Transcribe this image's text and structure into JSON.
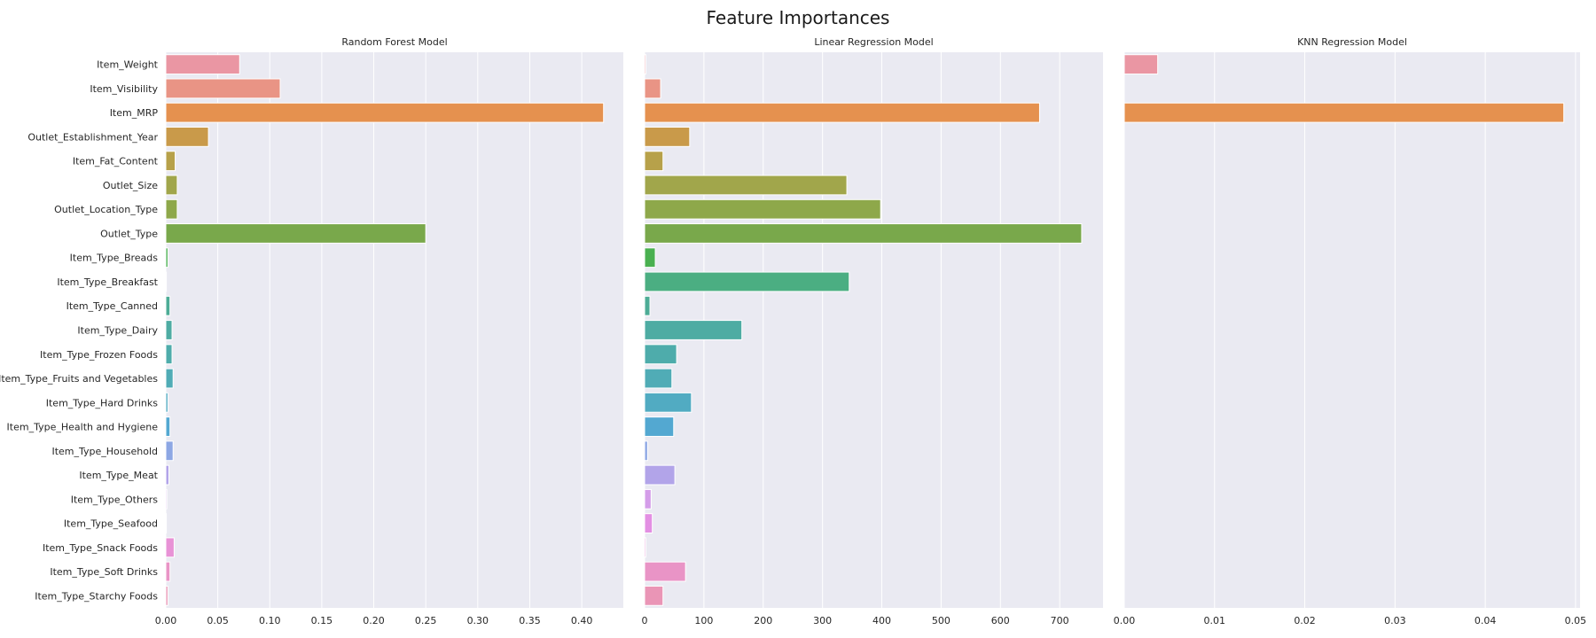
{
  "figure_title": "Feature Importances",
  "chart_data": [
    {
      "type": "bar",
      "orientation": "horizontal",
      "title": "Random Forest Model",
      "xlim": [
        0,
        0.44
      ],
      "xticks": [
        0,
        0.05,
        0.1,
        0.15,
        0.2,
        0.25,
        0.3,
        0.35,
        0.4
      ],
      "xtick_labels": [
        "0.00",
        "0.05",
        "0.10",
        "0.15",
        "0.20",
        "0.25",
        "0.30",
        "0.35",
        "0.40"
      ],
      "show_category_labels": true,
      "grid": true,
      "categories": [
        "Item_Weight",
        "Item_Visibility",
        "Item_MRP",
        "Outlet_Establishment_Year",
        "Item_Fat_Content",
        "Outlet_Size",
        "Outlet_Location_Type",
        "Outlet_Type",
        "Item_Type_Breads",
        "Item_Type_Breakfast",
        "Item_Type_Canned",
        "Item_Type_Dairy",
        "Item_Type_Frozen Foods",
        "Item_Type_Fruits and Vegetables",
        "Item_Type_Hard Drinks",
        "Item_Type_Health and Hygiene",
        "Item_Type_Household",
        "Item_Type_Meat",
        "Item_Type_Others",
        "Item_Type_Seafood",
        "Item_Type_Snack Foods",
        "Item_Type_Soft Drinks",
        "Item_Type_Starchy Foods"
      ],
      "values": [
        0.071,
        0.11,
        0.421,
        0.041,
        0.009,
        0.011,
        0.011,
        0.25,
        0.002,
        0.0005,
        0.004,
        0.006,
        0.006,
        0.007,
        0.002,
        0.004,
        0.007,
        0.003,
        0.001,
        0.0005,
        0.008,
        0.004,
        0.002
      ]
    },
    {
      "type": "bar",
      "orientation": "horizontal",
      "title": "Linear Regression Model",
      "xlim": [
        0,
        773
      ],
      "xticks": [
        0,
        100,
        200,
        300,
        400,
        500,
        600,
        700
      ],
      "xtick_labels": [
        "0",
        "100",
        "200",
        "300",
        "400",
        "500",
        "600",
        "700"
      ],
      "show_category_labels": false,
      "grid": true,
      "categories": [
        "Item_Weight",
        "Item_Visibility",
        "Item_MRP",
        "Outlet_Establishment_Year",
        "Item_Fat_Content",
        "Outlet_Size",
        "Outlet_Location_Type",
        "Outlet_Type",
        "Item_Type_Breads",
        "Item_Type_Breakfast",
        "Item_Type_Canned",
        "Item_Type_Dairy",
        "Item_Type_Frozen Foods",
        "Item_Type_Fruits and Vegetables",
        "Item_Type_Hard Drinks",
        "Item_Type_Health and Hygiene",
        "Item_Type_Household",
        "Item_Type_Meat",
        "Item_Type_Others",
        "Item_Type_Seafood",
        "Item_Type_Snack Foods",
        "Item_Type_Soft Drinks",
        "Item_Type_Starchy Foods"
      ],
      "values": [
        2,
        27,
        666,
        76,
        31,
        341,
        398,
        737,
        18,
        345,
        9,
        164,
        54,
        46,
        79,
        49,
        5,
        51,
        11,
        13,
        2,
        69,
        31
      ]
    },
    {
      "type": "bar",
      "orientation": "horizontal",
      "title": "KNN Regression Model",
      "xlim": [
        0,
        0.0505
      ],
      "xticks": [
        0,
        0.01,
        0.02,
        0.03,
        0.04,
        0.05
      ],
      "xtick_labels": [
        "0.00",
        "0.01",
        "0.02",
        "0.03",
        "0.04",
        "0.05"
      ],
      "show_category_labels": false,
      "grid": true,
      "categories": [
        "Item_Weight",
        "Item_Visibility",
        "Item_MRP",
        "Outlet_Establishment_Year",
        "Item_Fat_Content",
        "Outlet_Size",
        "Outlet_Location_Type",
        "Outlet_Type",
        "Item_Type_Breads",
        "Item_Type_Breakfast",
        "Item_Type_Canned",
        "Item_Type_Dairy",
        "Item_Type_Frozen Foods",
        "Item_Type_Fruits and Vegetables",
        "Item_Type_Hard Drinks",
        "Item_Type_Health and Hygiene",
        "Item_Type_Household",
        "Item_Type_Meat",
        "Item_Type_Others",
        "Item_Type_Seafood",
        "Item_Type_Snack Foods",
        "Item_Type_Soft Drinks",
        "Item_Type_Starchy Foods"
      ],
      "values": [
        0.0037,
        0,
        0.0487,
        0,
        0,
        0,
        0,
        0,
        0,
        0,
        0,
        0,
        0,
        0,
        0,
        0,
        0,
        0,
        0,
        0,
        0,
        0,
        0
      ]
    }
  ],
  "colors": {
    "axes_background": "#eaeaf2",
    "grid": "#ffffff",
    "bar_edge": "#ffffff",
    "palette": [
      "#ea96a3",
      "#e99485",
      "#e5914f",
      "#c99a4a",
      "#b7a14a",
      "#a1a64b",
      "#8ea84a",
      "#79a84b",
      "#49b050",
      "#4bae82",
      "#4dac96",
      "#4eaca3",
      "#4eacab",
      "#50acb6",
      "#51abc2",
      "#53a8d1",
      "#8da7e4",
      "#b2a4e9",
      "#d49de9",
      "#e38fe3",
      "#e892d6",
      "#e994c6",
      "#ea95b6"
    ]
  }
}
